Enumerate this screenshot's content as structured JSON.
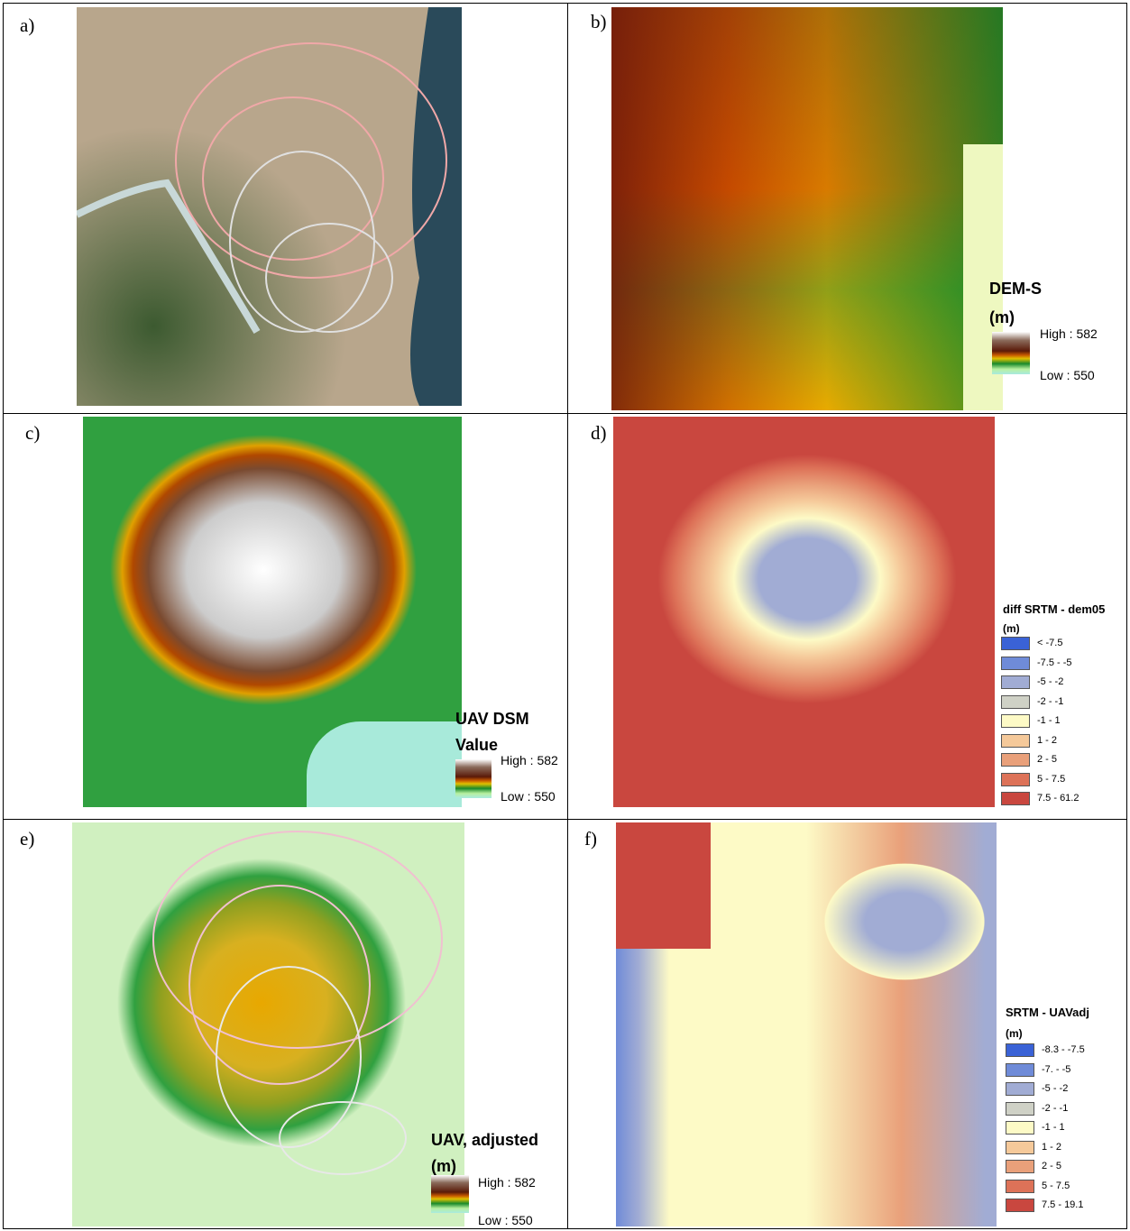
{
  "panels": [
    {
      "label": "a)"
    },
    {
      "label": "b)",
      "legend": {
        "title": "DEM-S",
        "unit": "(m)",
        "high": "High : 582",
        "low": "Low : 550"
      }
    },
    {
      "label": "c)",
      "legend": {
        "title": "UAV DSM",
        "unit": "Value",
        "high": "High : 582",
        "low": "Low : 550"
      }
    },
    {
      "label": "d)",
      "legend": {
        "title": "diff SRTM - dem05",
        "unit": "(m)",
        "entries": [
          "< -7.5",
          "-7.5 - -5",
          "-5 - -2",
          "-2 - -1",
          "-1 - 1",
          "1 - 2",
          "2 - 5",
          "5 - 7.5",
          "7.5 - 61.2"
        ]
      }
    },
    {
      "label": "e)",
      "legend": {
        "title": "UAV, adjusted",
        "unit": "(m)",
        "high": "High : 582",
        "low": "Low : 550"
      }
    },
    {
      "label": "f)",
      "legend": {
        "title": "SRTM - UAVadj",
        "unit": "(m)",
        "entries": [
          "-8.3 - -7.5",
          "-7. - -5",
          "-5 - -2",
          "-2 - -1",
          "-1 - 1",
          "1 - 2",
          "2 - 5",
          "5 - 7.5",
          "7.5 - 19.1"
        ]
      }
    }
  ]
}
